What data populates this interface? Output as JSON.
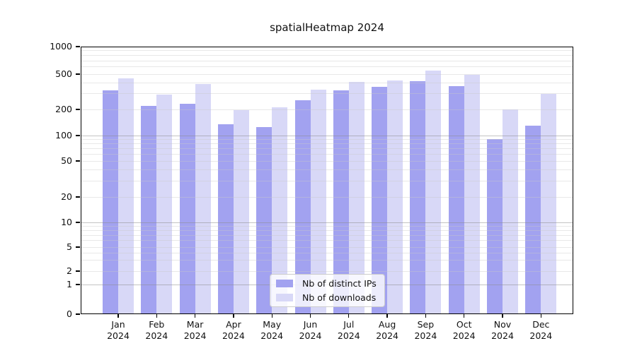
{
  "chart_data": {
    "type": "bar",
    "title": "spatialHeatmap 2024",
    "categories": [
      "Jan 2024",
      "Feb 2024",
      "Mar 2024",
      "Apr 2024",
      "May 2024",
      "Jun 2024",
      "Jul 2024",
      "Aug 2024",
      "Sep 2024",
      "Oct 2024",
      "Nov 2024",
      "Dec 2024"
    ],
    "series": [
      {
        "name": "Nb of distinct IPs",
        "color": "#a2a2f0",
        "values": [
          330,
          220,
          232,
          135,
          126,
          256,
          330,
          360,
          415,
          368,
          90,
          129
        ]
      },
      {
        "name": "Nb of downloads",
        "color": "#d8d8f7",
        "values": [
          444,
          296,
          390,
          196,
          212,
          335,
          405,
          425,
          548,
          489,
          200,
          298
        ]
      }
    ],
    "xlabel": "",
    "ylabel": "",
    "yscale": "symlog",
    "ylim": [
      0,
      1000
    ],
    "y_ticks": [
      0,
      1,
      2,
      5,
      10,
      20,
      50,
      100,
      200,
      500,
      1000
    ],
    "grid": true,
    "legend_position": "lower center"
  }
}
